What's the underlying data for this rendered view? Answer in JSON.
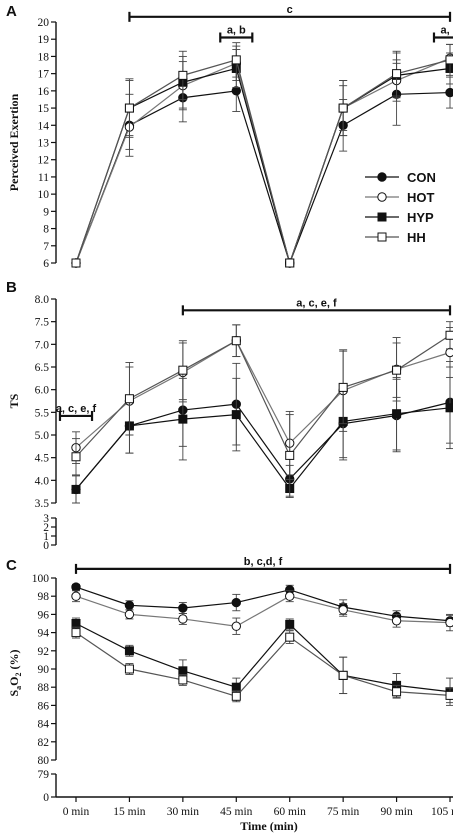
{
  "chart_data": [
    {
      "panel": "A",
      "type": "line",
      "ylabel": "Perceived Exertion",
      "ylim": [
        6,
        20
      ],
      "yticks": [
        6,
        7,
        8,
        9,
        10,
        11,
        12,
        13,
        14,
        15,
        16,
        17,
        18,
        19,
        20
      ],
      "yticklabels": [
        "6",
        "7",
        "8",
        "9",
        "10",
        "11",
        "12",
        "13",
        "14",
        "15",
        "16",
        "17",
        "18",
        "19",
        "20"
      ],
      "x": [
        0,
        1,
        2,
        3,
        4,
        5,
        6,
        7
      ],
      "series": [
        {
          "name": "CON",
          "marker": "filled-circle",
          "values": [
            6,
            14.0,
            15.6,
            16.0,
            6,
            14.0,
            15.8,
            15.9
          ],
          "err": [
            0,
            1.8,
            1.4,
            1.2,
            0,
            1.5,
            1.8,
            0.9
          ]
        },
        {
          "name": "HOT",
          "marker": "open-circle",
          "values": [
            6,
            13.9,
            16.3,
            17.6,
            6,
            15.0,
            16.6,
            17.9
          ],
          "err": [
            0,
            1.3,
            1.4,
            1.0,
            0,
            1.3,
            1.2,
            0.8
          ]
        },
        {
          "name": "HYP",
          "marker": "filled-square",
          "values": [
            6,
            15.0,
            16.5,
            17.3,
            6,
            15.0,
            16.9,
            17.3
          ],
          "err": [
            0,
            1.6,
            1.5,
            1.1,
            0,
            1.6,
            1.3,
            0.9
          ]
        },
        {
          "name": "HH",
          "marker": "open-square",
          "values": [
            6,
            15.0,
            16.9,
            17.8,
            6,
            15.0,
            17.0,
            17.8
          ],
          "err": [
            0,
            1.7,
            1.4,
            1.0,
            0,
            1.6,
            1.3,
            0.9
          ]
        }
      ],
      "annotations": [
        {
          "label": "c",
          "x_from": 1,
          "x_to": 7,
          "y": 20.3
        },
        {
          "label": "a, b",
          "x_from": 2.7,
          "x_to": 3.3,
          "y": 19.1
        },
        {
          "label": "a, b",
          "x_from": 6.7,
          "x_to": 7.3,
          "y": 19.1
        }
      ],
      "legend": [
        "CON",
        "HOT",
        "HYP",
        "HH"
      ],
      "legend_position": "right"
    },
    {
      "panel": "B",
      "type": "line",
      "ylabel": "TS",
      "ylim": [
        0,
        8
      ],
      "axis_break": [
        3.5,
        3
      ],
      "yticks": [
        0,
        1,
        2,
        3,
        3.5,
        4,
        4.5,
        5,
        5.5,
        6,
        6.5,
        7,
        7.5,
        8
      ],
      "yticklabels": [
        "0",
        "1",
        "2",
        "3",
        "3.5",
        "4.0",
        "4.5",
        "5.0",
        "5.5",
        "6.0",
        "6.5",
        "7.0",
        "7.5",
        "8.0"
      ],
      "x": [
        0,
        1,
        2,
        3,
        4,
        5,
        6,
        7
      ],
      "series": [
        {
          "name": "CON",
          "marker": "filled-circle",
          "values": [
            3.8,
            5.2,
            5.55,
            5.68,
            4.03,
            5.25,
            5.43,
            5.72
          ],
          "err": [
            0.3,
            0.6,
            0.8,
            0.9,
            0.3,
            0.8,
            0.8,
            0.9
          ]
        },
        {
          "name": "HOT",
          "marker": "open-circle",
          "values": [
            4.72,
            5.75,
            6.38,
            7.08,
            4.82,
            5.98,
            6.45,
            6.82
          ],
          "err": [
            0.35,
            0.75,
            0.65,
            0.35,
            0.7,
            0.9,
            0.7,
            0.55
          ]
        },
        {
          "name": "HYP",
          "marker": "filled-square",
          "values": [
            3.8,
            5.2,
            5.35,
            5.45,
            3.82,
            5.3,
            5.47,
            5.6
          ],
          "err": [
            0.3,
            0.6,
            0.9,
            0.8,
            0.2,
            0.8,
            0.8,
            0.9
          ]
        },
        {
          "name": "HH",
          "marker": "open-square",
          "values": [
            4.52,
            5.8,
            6.43,
            7.08,
            4.55,
            6.05,
            6.43,
            7.2
          ],
          "err": [
            0.4,
            0.8,
            0.65,
            0.35,
            0.9,
            0.8,
            0.6,
            0.3
          ]
        }
      ],
      "annotations": [
        {
          "label": "a, c, e, f",
          "x_from": 2,
          "x_to": 7,
          "y": 7.75
        },
        {
          "label": "a, c, e, f",
          "x_from": -0.3,
          "x_to": 0.3,
          "y": 5.42
        }
      ]
    },
    {
      "panel": "C",
      "type": "line",
      "ylabel": "SaO2 (%)",
      "ylim": [
        0,
        100
      ],
      "axis_break": [
        80,
        79
      ],
      "yticks": [
        0,
        79,
        80,
        82,
        84,
        86,
        88,
        90,
        92,
        94,
        96,
        98,
        100
      ],
      "yticklabels": [
        "0",
        "79",
        "80",
        "82",
        "84",
        "86",
        "88",
        "90",
        "92",
        "94",
        "96",
        "98",
        "100"
      ],
      "x": [
        0,
        1,
        2,
        3,
        4,
        5,
        6,
        7
      ],
      "xticklabels": [
        "0 min",
        "15 min",
        "30 min",
        "45 min",
        "60 min",
        "75 min",
        "90 min",
        "105 min"
      ],
      "xlabel": "Time (min)",
      "series": [
        {
          "name": "CON",
          "marker": "filled-circle",
          "values": [
            99.0,
            97.0,
            96.7,
            97.3,
            98.7,
            96.8,
            95.8,
            95.3
          ],
          "err": [
            0.3,
            0.5,
            0.6,
            0.9,
            0.5,
            0.8,
            0.6,
            0.6
          ]
        },
        {
          "name": "HOT",
          "marker": "open-circle",
          "values": [
            98.0,
            96.0,
            95.5,
            94.7,
            98.0,
            96.5,
            95.3,
            95.1
          ],
          "err": [
            0.6,
            0.5,
            0.6,
            0.9,
            0.6,
            0.7,
            0.7,
            0.9
          ]
        },
        {
          "name": "HYP",
          "marker": "filled-square",
          "values": [
            95.0,
            92.0,
            89.8,
            88.0,
            94.9,
            89.3,
            88.2,
            87.5
          ],
          "err": [
            0.6,
            0.6,
            1.2,
            1.0,
            0.6,
            2.0,
            1.3,
            1.5
          ]
        },
        {
          "name": "HH",
          "marker": "open-square",
          "values": [
            94.0,
            90.0,
            88.8,
            87.0,
            93.5,
            89.3,
            87.5,
            87.1
          ],
          "err": [
            0.6,
            0.6,
            0.6,
            0.6,
            0.7,
            2.0,
            0.7,
            0.8
          ]
        }
      ],
      "annotations": [
        {
          "label": "b, c,d, f",
          "x_from": 0,
          "x_to": 7,
          "y": 101.0
        }
      ]
    }
  ],
  "ui": {
    "panel_letters": [
      "A",
      "B",
      "C"
    ],
    "colors": {
      "ink": "#111111",
      "hot_line": "#777777",
      "hh_line": "#555555"
    }
  }
}
